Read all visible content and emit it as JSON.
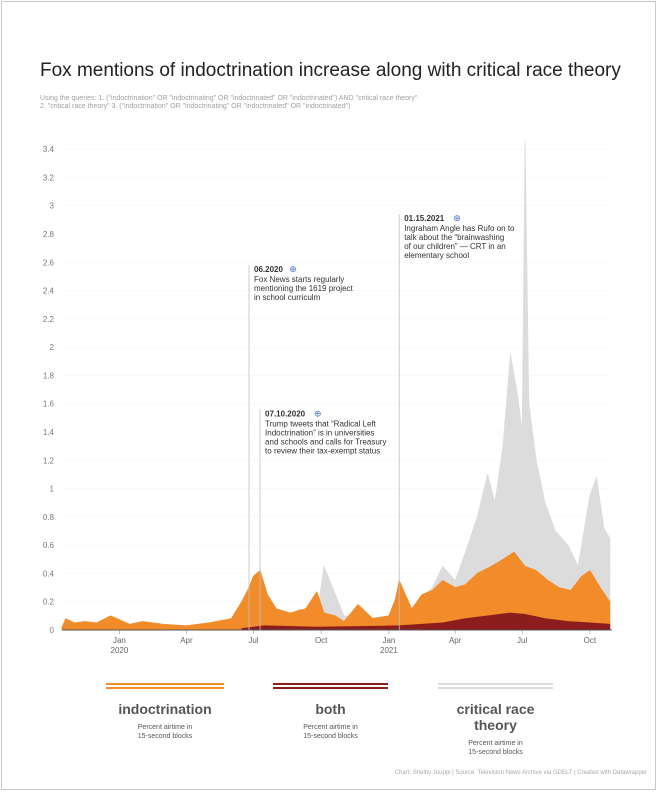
{
  "title": "Fox mentions of indoctrination increase along with critical race theory",
  "subtitle": [
    "Using the queries: 1. (\"indoctrination\" OR \"indoctrinating\" OR \"indoctrinated\" OR \"indoctrinated\") AND \"critical race theory\"",
    "2. \"critical race theory\" 3. (\"indoctrination\" OR \"indoctrinating\" OR \"indoctrinated\" OR \"indoctrinated\")"
  ],
  "footer": "Chart: Shelby Jouppi  |  Source: Television News Archive via GDELT  |  Created with Datawrapper",
  "colors": {
    "indoctrination": "#f28b2a",
    "both": "#8c1d1d",
    "crt": "#dcdcdc",
    "grid": "#dddddd",
    "axis": "#555555"
  },
  "legend": [
    {
      "key": "indoctrination",
      "name": "indoctrination",
      "desc": [
        "Percent airtime in",
        "15-second blocks"
      ]
    },
    {
      "key": "both",
      "name": "both",
      "desc": [
        "Percent airtime in",
        "15-second blocks"
      ]
    },
    {
      "key": "crt",
      "name": "critical race theory",
      "desc": [
        "Percent airtime in",
        "15-second blocks"
      ]
    }
  ],
  "annotations": [
    {
      "date": "06.2020",
      "x": "2020-06-25",
      "top_value": 2.58,
      "lines": [
        "Fox News starts regularly",
        "mentioning the 1619 project",
        "in school curriculm"
      ]
    },
    {
      "date": "07.10.2020",
      "x": "2020-07-10",
      "top_value": 1.56,
      "lines": [
        "Trump tweets that “Radical Left",
        "Indoctrination” is in universities",
        "and schools and calls for Treasury",
        "to review their tax-exempt status"
      ]
    },
    {
      "date": "01.15.2021",
      "x": "2021-01-15",
      "top_value": 2.94,
      "lines": [
        "Ingraham Angle has Rufo on to",
        "talk about the “brainwashing",
        "of our children” — CRT in an",
        "elementary school"
      ]
    }
  ],
  "chart_data": {
    "type": "area",
    "title": "Fox mentions of indoctrination increase along with critical race theory",
    "xlabel": "",
    "ylabel": "",
    "ylim": [
      0,
      3.5
    ],
    "xlim": [
      "2019-10-15",
      "2021-10-31"
    ],
    "y_ticks": [
      "0",
      "0.2",
      "0.4",
      "0.6",
      "0.8",
      "1",
      "1.2",
      "1.4",
      "1.6",
      "1.8",
      "2",
      "2.2",
      "2.4",
      "2.6",
      "2.8",
      "3",
      "3.2",
      "3.4"
    ],
    "x_ticks": [
      {
        "date": "2020-01-01",
        "label": "Jan",
        "year": "2020"
      },
      {
        "date": "2020-04-01",
        "label": "Apr",
        "year": ""
      },
      {
        "date": "2020-07-01",
        "label": "Jul",
        "year": ""
      },
      {
        "date": "2020-10-01",
        "label": "Oct",
        "year": ""
      },
      {
        "date": "2021-01-01",
        "label": "Jan",
        "year": "2021"
      },
      {
        "date": "2021-04-01",
        "label": "Apr",
        "year": ""
      },
      {
        "date": "2021-07-01",
        "label": "Jul",
        "year": ""
      },
      {
        "date": "2021-10-01",
        "label": "Oct",
        "year": ""
      }
    ],
    "grid": true,
    "series": [
      {
        "name": "critical race theory",
        "points": [
          [
            "2020-06-01",
            0.02
          ],
          [
            "2020-07-01",
            0.05
          ],
          [
            "2020-08-01",
            0.03
          ],
          [
            "2020-09-01",
            0.15
          ],
          [
            "2020-09-25",
            0.1
          ],
          [
            "2020-10-05",
            0.45
          ],
          [
            "2020-11-01",
            0.1
          ],
          [
            "2020-12-01",
            0.08
          ],
          [
            "2021-01-01",
            0.1
          ],
          [
            "2021-02-01",
            0.15
          ],
          [
            "2021-02-20",
            0.25
          ],
          [
            "2021-03-01",
            0.3
          ],
          [
            "2021-03-15",
            0.45
          ],
          [
            "2021-04-01",
            0.35
          ],
          [
            "2021-04-15",
            0.55
          ],
          [
            "2021-05-01",
            0.8
          ],
          [
            "2021-05-15",
            1.1
          ],
          [
            "2021-05-25",
            0.9
          ],
          [
            "2021-06-05",
            1.3
          ],
          [
            "2021-06-15",
            1.95
          ],
          [
            "2021-06-25",
            1.65
          ],
          [
            "2021-07-01",
            1.4
          ],
          [
            "2021-07-05",
            3.46
          ],
          [
            "2021-07-10",
            1.6
          ],
          [
            "2021-07-20",
            1.2
          ],
          [
            "2021-08-01",
            0.9
          ],
          [
            "2021-08-15",
            0.7
          ],
          [
            "2021-09-01",
            0.6
          ],
          [
            "2021-09-15",
            0.45
          ],
          [
            "2021-10-01",
            0.95
          ],
          [
            "2021-10-10",
            1.08
          ],
          [
            "2021-10-20",
            0.72
          ],
          [
            "2021-10-28",
            0.65
          ]
        ]
      },
      {
        "name": "indoctrination",
        "points": [
          [
            "2019-10-15",
            0.02
          ],
          [
            "2019-10-20",
            0.08
          ],
          [
            "2019-11-01",
            0.05
          ],
          [
            "2019-11-15",
            0.06
          ],
          [
            "2019-12-01",
            0.05
          ],
          [
            "2019-12-20",
            0.1
          ],
          [
            "2020-01-15",
            0.04
          ],
          [
            "2020-02-01",
            0.06
          ],
          [
            "2020-03-01",
            0.04
          ],
          [
            "2020-04-01",
            0.03
          ],
          [
            "2020-05-01",
            0.05
          ],
          [
            "2020-06-01",
            0.08
          ],
          [
            "2020-06-15",
            0.2
          ],
          [
            "2020-06-25",
            0.3
          ],
          [
            "2020-07-01",
            0.38
          ],
          [
            "2020-07-10",
            0.42
          ],
          [
            "2020-07-20",
            0.25
          ],
          [
            "2020-08-01",
            0.15
          ],
          [
            "2020-08-20",
            0.12
          ],
          [
            "2020-09-10",
            0.15
          ],
          [
            "2020-09-25",
            0.27
          ],
          [
            "2020-10-05",
            0.12
          ],
          [
            "2020-10-20",
            0.1
          ],
          [
            "2020-11-01",
            0.06
          ],
          [
            "2020-11-20",
            0.18
          ],
          [
            "2020-12-10",
            0.08
          ],
          [
            "2021-01-01",
            0.1
          ],
          [
            "2021-01-10",
            0.22
          ],
          [
            "2021-01-15",
            0.35
          ],
          [
            "2021-02-01",
            0.15
          ],
          [
            "2021-02-15",
            0.25
          ],
          [
            "2021-03-01",
            0.28
          ],
          [
            "2021-03-15",
            0.35
          ],
          [
            "2021-04-01",
            0.3
          ],
          [
            "2021-04-15",
            0.32
          ],
          [
            "2021-05-01",
            0.4
          ],
          [
            "2021-05-20",
            0.45
          ],
          [
            "2021-06-05",
            0.5
          ],
          [
            "2021-06-20",
            0.55
          ],
          [
            "2021-07-05",
            0.45
          ],
          [
            "2021-07-20",
            0.42
          ],
          [
            "2021-08-05",
            0.35
          ],
          [
            "2021-08-20",
            0.3
          ],
          [
            "2021-09-05",
            0.28
          ],
          [
            "2021-09-20",
            0.38
          ],
          [
            "2021-10-01",
            0.42
          ],
          [
            "2021-10-15",
            0.3
          ],
          [
            "2021-10-28",
            0.2
          ]
        ]
      },
      {
        "name": "both",
        "points": [
          [
            "2020-06-15",
            0.01
          ],
          [
            "2020-07-15",
            0.03
          ],
          [
            "2020-09-25",
            0.02
          ],
          [
            "2021-01-15",
            0.03
          ],
          [
            "2021-03-15",
            0.05
          ],
          [
            "2021-04-15",
            0.08
          ],
          [
            "2021-05-15",
            0.1
          ],
          [
            "2021-06-15",
            0.12
          ],
          [
            "2021-07-05",
            0.11
          ],
          [
            "2021-08-01",
            0.08
          ],
          [
            "2021-09-01",
            0.06
          ],
          [
            "2021-10-01",
            0.05
          ],
          [
            "2021-10-28",
            0.04
          ]
        ]
      }
    ]
  }
}
